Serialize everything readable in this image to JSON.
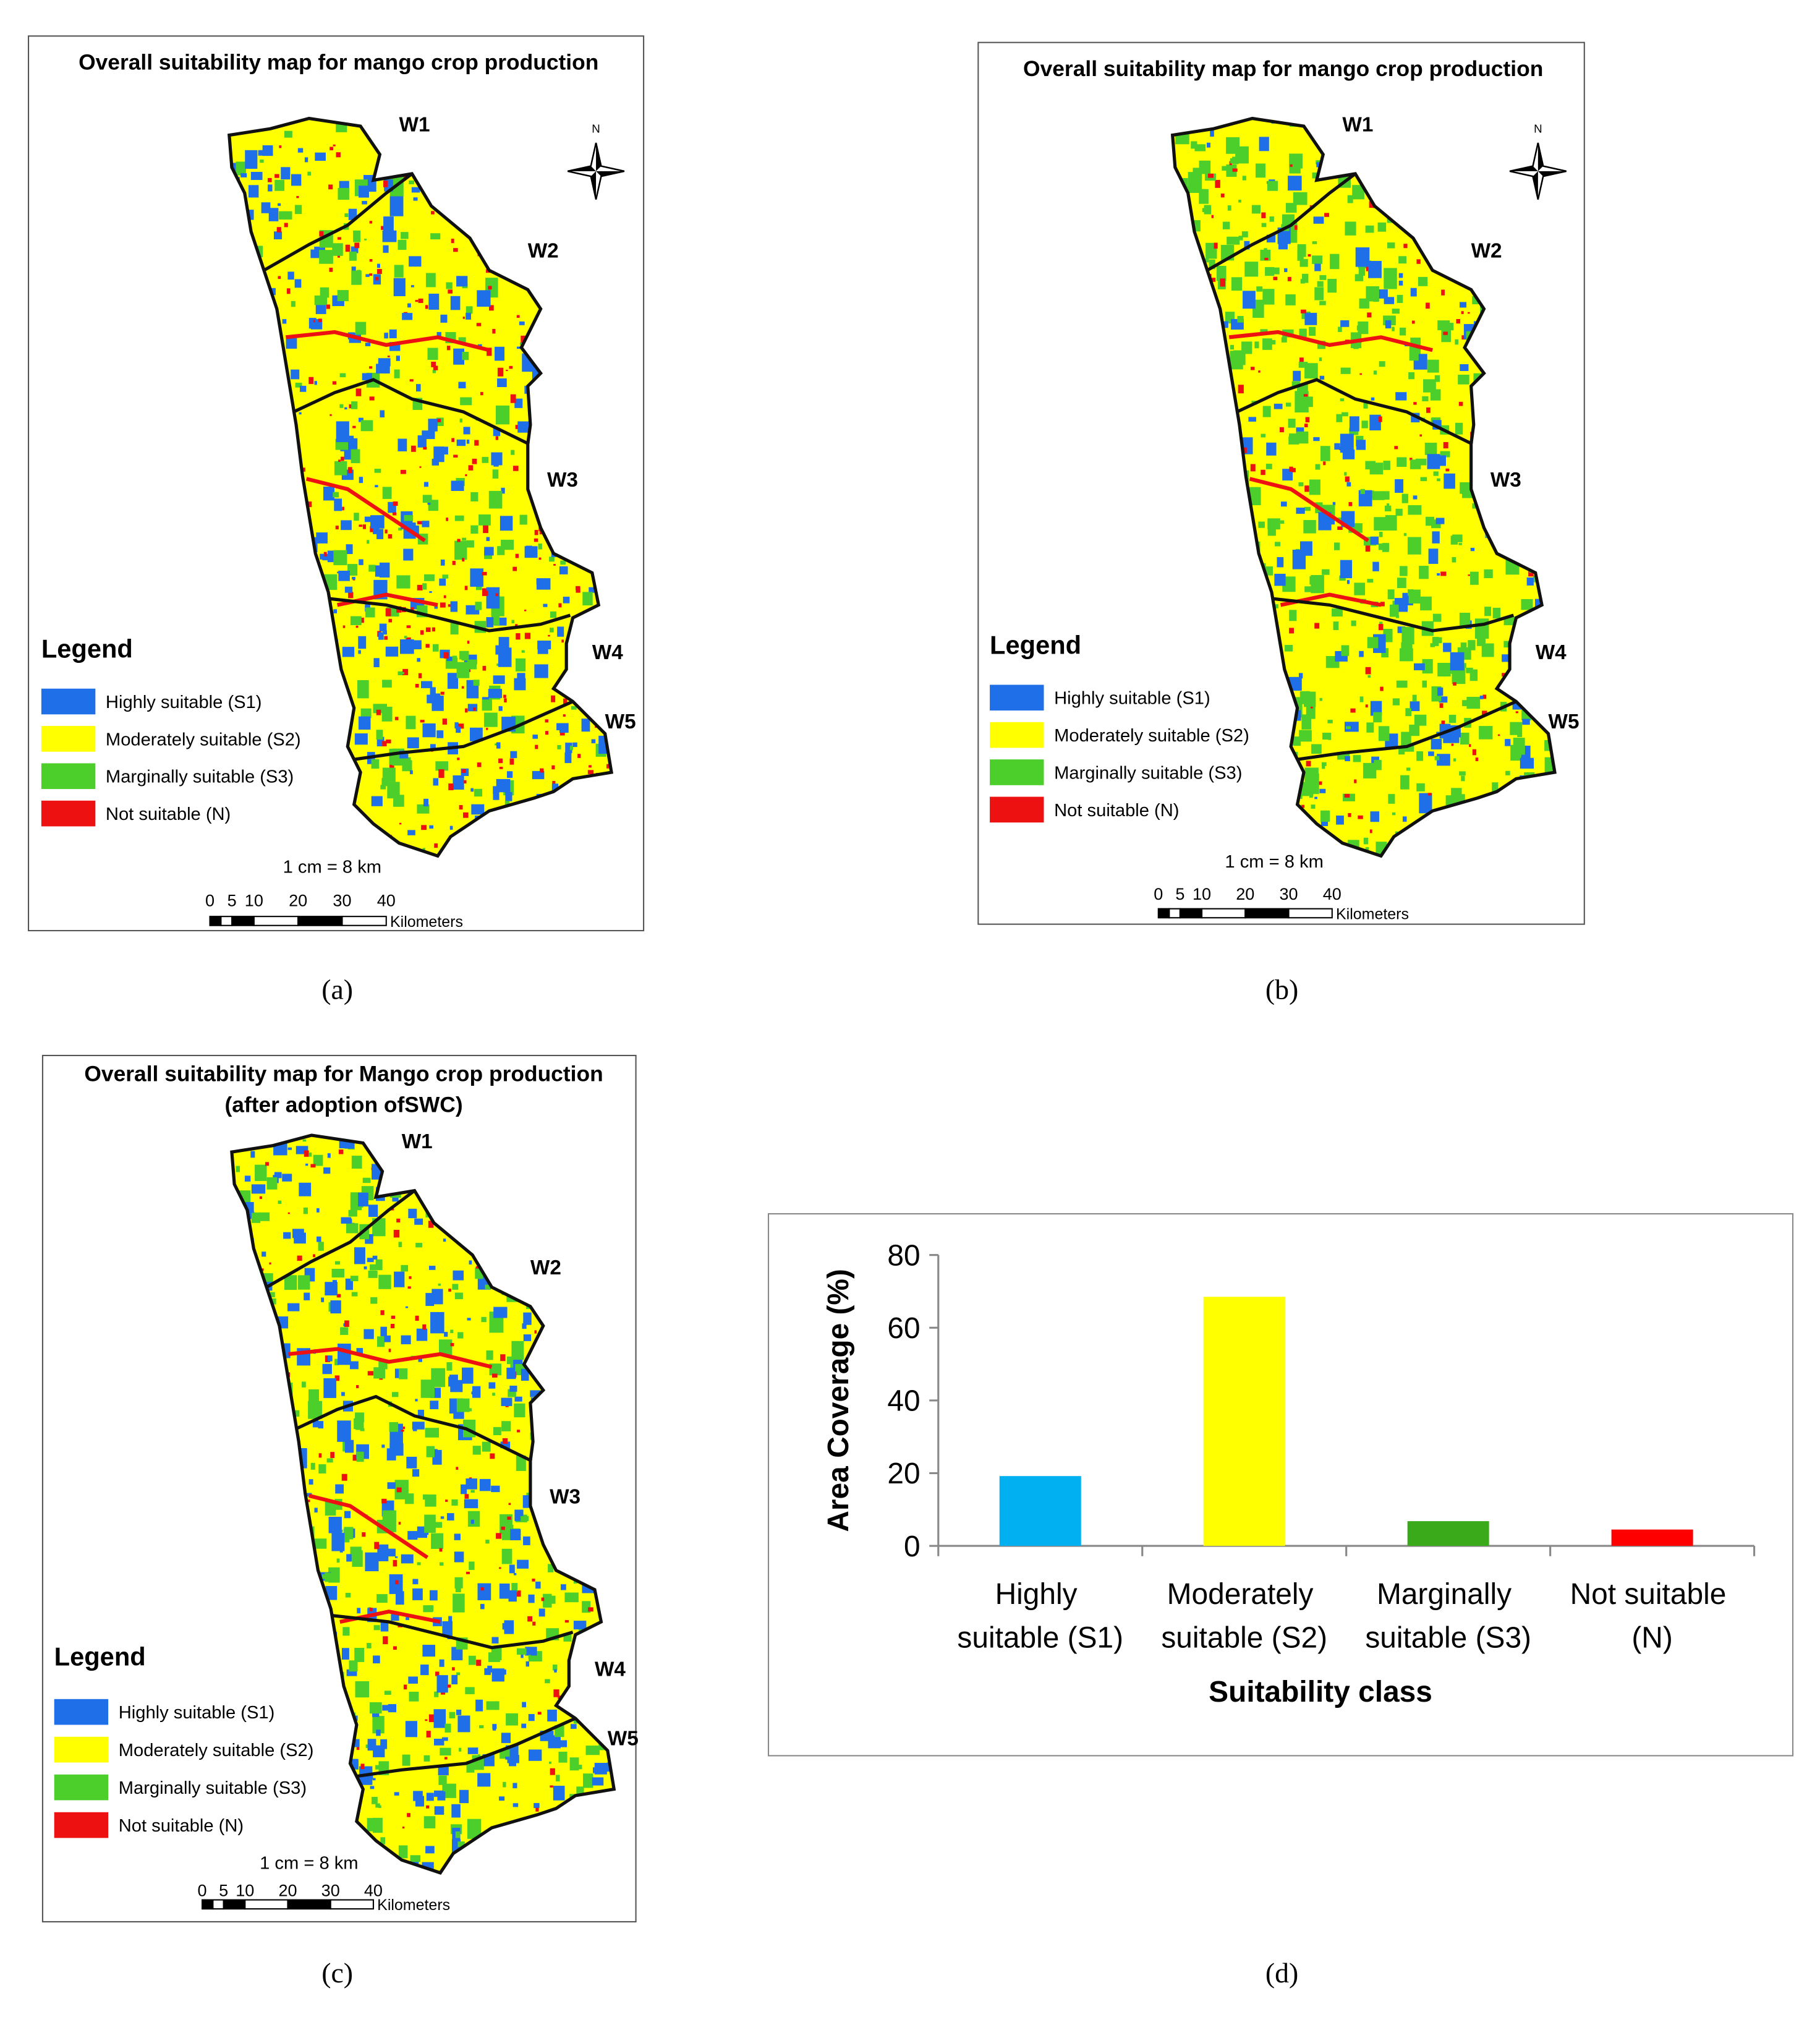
{
  "maps": [
    {
      "label": "(a)",
      "title": [
        "Overall suitability map for mango crop production"
      ],
      "watersheds": [
        "W1",
        "W2",
        "W3",
        "W4",
        "W5"
      ],
      "north": "N",
      "legend": {
        "title": "Legend",
        "items": [
          {
            "label": "Highly suitable (S1)",
            "color": "#1f6fe8"
          },
          {
            "label": "Moderately suitable (S2)",
            "color": "#ffff00"
          },
          {
            "label": "Marginally suitable (S3)",
            "color": "#4ccf2a"
          },
          {
            "label": "Not suitable (N)",
            "color": "#ee1111"
          }
        ]
      },
      "scale_text": "1 cm = 8 km",
      "scale_ticks": [
        "0",
        "5",
        "10",
        "20",
        "30",
        "40"
      ],
      "scale_unit": "Kilometers"
    },
    {
      "label": "(b)",
      "title": [
        "Overall suitability map for mango crop production"
      ],
      "watersheds": [
        "W1",
        "W2",
        "W3",
        "W4",
        "W5"
      ],
      "north": "N",
      "legend": {
        "title": "Legend",
        "items": [
          {
            "label": "Highly suitable (S1)",
            "color": "#1f6fe8"
          },
          {
            "label": "Moderately suitable (S2)",
            "color": "#ffff00"
          },
          {
            "label": "Marginally suitable (S3)",
            "color": "#4ccf2a"
          },
          {
            "label": "Not suitable (N)",
            "color": "#ee1111"
          }
        ]
      },
      "scale_text": "1 cm = 8 km",
      "scale_ticks": [
        "0",
        "5",
        "10",
        "20",
        "30",
        "40"
      ],
      "scale_unit": "Kilometers"
    },
    {
      "label": "(c)",
      "title": [
        "Overall suitability map for Mango crop production",
        "(after adoption ofSWC)"
      ],
      "watersheds": [
        "W1",
        "W2",
        "W3",
        "W4",
        "W5"
      ],
      "legend": {
        "title": "Legend",
        "items": [
          {
            "label": "Highly suitable (S1)",
            "color": "#1f6fe8"
          },
          {
            "label": "Moderately suitable (S2)",
            "color": "#ffff00"
          },
          {
            "label": "Marginally suitable (S3)",
            "color": "#4ccf2a"
          },
          {
            "label": "Not suitable (N)",
            "color": "#ee1111"
          }
        ]
      },
      "scale_text": "1 cm = 8 km",
      "scale_ticks": [
        "0",
        "5",
        "10",
        "20",
        "30",
        "40"
      ],
      "scale_unit": "Kilometers"
    }
  ],
  "chart_label": "(d)",
  "chart_data": {
    "type": "bar",
    "categories": [
      "Highly suitable (S1)",
      "Moderately suitable (S2)",
      "Marginally suitable (S3)",
      "Not suitable (N)"
    ],
    "values": [
      19.2,
      68.5,
      6.8,
      4.5
    ],
    "colors": [
      "#00b0f0",
      "#ffff00",
      "#3aaa1a",
      "#ff0000"
    ],
    "x_label": "Suitability class",
    "y_label": "Area Coverage (%)",
    "ylim": [
      0,
      80
    ],
    "yticks": [
      0,
      20,
      40,
      60,
      80
    ],
    "grid": false
  }
}
